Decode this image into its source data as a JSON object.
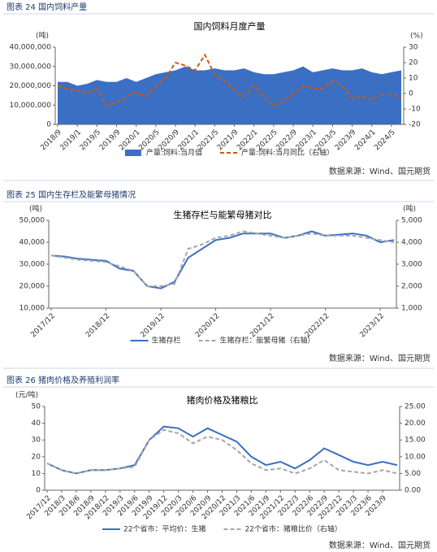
{
  "chart_data": [
    {
      "type": "line",
      "caption": "图表 24 国内饲料产量",
      "title": "国内饲料月度产量",
      "source": "数据来源：Wind、国元期货",
      "y_label": "(吨)",
      "y2_label": "(%)",
      "categories": [
        "2018/9",
        null,
        "2019/1",
        null,
        "2019/5",
        null,
        "2019/9",
        null,
        "2020/1",
        null,
        "2020/5",
        null,
        "2020/9",
        null,
        "2021/1",
        null,
        "2021/5",
        null,
        "2021/9",
        null,
        "2022/1",
        null,
        "2022/5",
        null,
        "2022/9",
        null,
        "2023/1",
        null,
        "2023/5",
        null,
        "2023/9",
        null,
        "2024/1",
        null,
        "2024/5",
        null
      ],
      "ylim": [
        0,
        40000000
      ],
      "yticks": [
        0,
        {
          "value": 10000000,
          "label": "10,000,000"
        },
        {
          "value": 20000000,
          "label": "20,000,000"
        },
        {
          "value": 30000000,
          "label": "30,000,000"
        },
        {
          "value": 40000000,
          "label": "40,000,000"
        }
      ],
      "y2lim": [
        -20,
        30
      ],
      "y2ticks": [
        -20,
        -10,
        0,
        10,
        20,
        30
      ],
      "series": [
        {
          "name": "产量:饲料:当月值",
          "type": "area",
          "color": "#3a6fc4",
          "values": [
            22000000,
            22000000,
            20000000,
            21000000,
            23000000,
            22000000,
            22000000,
            24000000,
            22000000,
            24000000,
            26000000,
            27000000,
            28000000,
            30000000,
            28000000,
            28000000,
            29000000,
            28000000,
            28000000,
            29000000,
            27000000,
            26000000,
            26000000,
            27000000,
            28000000,
            30000000,
            27000000,
            28000000,
            29000000,
            28000000,
            28000000,
            29000000,
            27000000,
            26000000,
            27000000,
            28000000
          ]
        },
        {
          "name": "产量:饲料:当月同比（右轴）",
          "type": "line",
          "dash": true,
          "axis": "y2",
          "color": "#c55a11",
          "values": [
            5,
            3,
            2,
            0,
            3,
            -8,
            -6,
            -2,
            1,
            -2,
            5,
            10,
            20,
            18,
            15,
            25,
            12,
            8,
            2,
            -2,
            5,
            -2,
            -8,
            -5,
            0,
            5,
            3,
            3,
            8,
            5,
            -3,
            -2,
            -4,
            -1,
            -1,
            -2
          ]
        }
      ]
    },
    {
      "type": "line",
      "caption": "图表 25 国内生存栏及能繁母猪情况",
      "title": "生猪存栏与能繁母猪对比",
      "source": "数据来源：Wind、国元期货",
      "y_label": "(吨)",
      "y2_label": "(吨)",
      "categories": [
        "2017/12",
        null,
        null,
        null,
        "2018/12",
        null,
        null,
        null,
        "2019/12",
        null,
        null,
        null,
        "2020/12",
        null,
        null,
        null,
        "2021/12",
        null,
        null,
        null,
        "2022/12",
        null,
        null,
        null,
        "2023/12",
        null
      ],
      "ylim": [
        10000,
        50000
      ],
      "yticks": [
        {
          "value": 10000,
          "label": "10,000"
        },
        {
          "value": 20000,
          "label": "20,000"
        },
        {
          "value": 30000,
          "label": "30,000"
        },
        {
          "value": 40000,
          "label": "40,000"
        },
        {
          "value": 50000,
          "label": "50,000"
        }
      ],
      "y2lim": [
        1000,
        5000
      ],
      "y2ticks": [
        {
          "value": 1000,
          "label": "1,000"
        },
        {
          "value": 2000,
          "label": "2,000"
        },
        {
          "value": 3000,
          "label": "3,000"
        },
        {
          "value": 4000,
          "label": "4,000"
        },
        {
          "value": 5000,
          "label": "5,000"
        }
      ],
      "series": [
        {
          "name": "生猪存栏",
          "type": "line",
          "color": "#3a6fc4",
          "values": [
            34000,
            33500,
            32500,
            32000,
            31500,
            28000,
            27000,
            20000,
            19000,
            22000,
            33000,
            37000,
            41000,
            42000,
            44000,
            44000,
            44000,
            42000,
            43000,
            45000,
            43000,
            43500,
            44000,
            43000,
            40000,
            41000
          ]
        },
        {
          "name": "生猪存栏：能繁母猪（右轴）",
          "type": "line",
          "dash": true,
          "axis": "y2",
          "color": "#a6a6a6",
          "values": [
            3400,
            3300,
            3200,
            3150,
            3100,
            2900,
            2700,
            2000,
            2000,
            2100,
            3700,
            3900,
            4200,
            4300,
            4500,
            4400,
            4300,
            4200,
            4300,
            4400,
            4300,
            4300,
            4300,
            4200,
            4100,
            4000
          ]
        }
      ]
    },
    {
      "type": "line",
      "caption": "图表 26 猪肉价格及养殖利润率",
      "title": "猪肉价格及猪粮比",
      "source": "数据来源：Wind、国元期货",
      "y_label": "(元/吨)",
      "categories": [
        "2017/12",
        "2018/3",
        "2018/6",
        "2018/9",
        "2018/12",
        "2019/3",
        "2019/6",
        "2019/9",
        "2019/12",
        "2020/3",
        "2020/6",
        "2020/9",
        "2020/12",
        "2021/3",
        "2021/6",
        "2021/9",
        "2021/12",
        "2022/3",
        "2022/6",
        "2022/9",
        "2022/12",
        "2023/3",
        "2023/6",
        "2023/9",
        null
      ],
      "ylim": [
        0,
        50
      ],
      "yticks": [
        0,
        10,
        20,
        30,
        40,
        50
      ],
      "y2lim": [
        0,
        25
      ],
      "y2ticks": [
        {
          "value": 0,
          "label": "0.00"
        },
        {
          "value": 5,
          "label": "5.00"
        },
        {
          "value": 10,
          "label": "10.00"
        },
        {
          "value": 15,
          "label": "15.00"
        },
        {
          "value": 20,
          "label": "20.00"
        },
        {
          "value": 25,
          "label": "25.00"
        }
      ],
      "series": [
        {
          "name": "22个省市：平均价：生猪",
          "type": "line",
          "color": "#3a6fc4",
          "values": [
            16,
            12,
            10,
            12,
            12,
            13,
            15,
            30,
            38,
            37,
            32,
            37,
            33,
            29,
            20,
            15,
            17,
            13,
            18,
            25,
            21,
            17,
            15,
            17,
            15
          ]
        },
        {
          "name": "22个省市：猪粮比价（右轴）",
          "type": "line",
          "dash": true,
          "axis": "y2",
          "color": "#a6a6a6",
          "values": [
            8,
            6,
            5,
            6,
            6,
            6.5,
            7,
            15,
            18,
            17,
            14,
            16,
            15,
            12,
            8,
            6,
            6.5,
            5,
            6.5,
            9,
            6,
            5.5,
            5,
            6,
            5
          ]
        }
      ]
    }
  ]
}
